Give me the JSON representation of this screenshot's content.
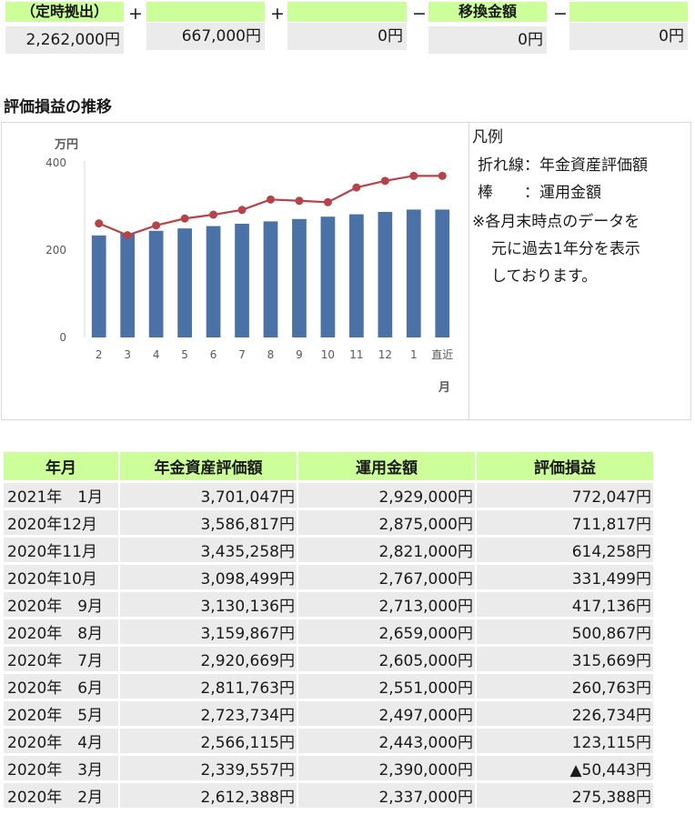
{
  "summary": {
    "boxes": [
      {
        "label": "（定時拠出）",
        "value": "2,262,000円"
      },
      {
        "label": "",
        "value": "667,000円"
      },
      {
        "label": "",
        "value": "0円"
      },
      {
        "label": "移換金額",
        "value": "0円"
      },
      {
        "label": "",
        "value": "0円"
      }
    ],
    "operators": [
      "+",
      "+",
      "−",
      "−"
    ]
  },
  "chart_section": {
    "title": "評価損益の推移",
    "legend": {
      "title": "凡例",
      "line1": "折れ線：年金資産評価額",
      "line2": "棒　　：運用金額",
      "note1": "※各月末時点のデータを",
      "note2": "元に過去1年分を表示",
      "note3": "しております。"
    }
  },
  "chart_data": {
    "type": "bar",
    "y_unit_label": "万円",
    "x_unit_label": "月",
    "categories": [
      "2",
      "3",
      "4",
      "5",
      "6",
      "7",
      "8",
      "9",
      "10",
      "11",
      "12",
      "1",
      "直近"
    ],
    "yticks": [
      0,
      200,
      400
    ],
    "ylim": [
      0,
      400
    ],
    "grid": false,
    "series": [
      {
        "kind": "bar",
        "color": "#4a72a6",
        "values": [
          233.7,
          239,
          244.3,
          249.7,
          255.1,
          260.5,
          265.9,
          271.3,
          276.7,
          282.1,
          287.5,
          292.9,
          292.9
        ]
      },
      {
        "kind": "line",
        "color": "#b5434a",
        "values": [
          261.2,
          234,
          256.6,
          272.4,
          281.2,
          292.1,
          316,
          313,
          309.8,
          343.5,
          358.7,
          370.1,
          370.1
        ]
      }
    ]
  },
  "history": {
    "headers": [
      "年月",
      "年金資産評価額",
      "運用金額",
      "評価損益"
    ],
    "rows": [
      [
        "2021年　1月",
        "3,701,047円",
        "2,929,000円",
        "772,047円"
      ],
      [
        "2020年12月",
        "3,586,817円",
        "2,875,000円",
        "711,817円"
      ],
      [
        "2020年11月",
        "3,435,258円",
        "2,821,000円",
        "614,258円"
      ],
      [
        "2020年10月",
        "3,098,499円",
        "2,767,000円",
        "331,499円"
      ],
      [
        "2020年　9月",
        "3,130,136円",
        "2,713,000円",
        "417,136円"
      ],
      [
        "2020年　8月",
        "3,159,867円",
        "2,659,000円",
        "500,867円"
      ],
      [
        "2020年　7月",
        "2,920,669円",
        "2,605,000円",
        "315,669円"
      ],
      [
        "2020年　6月",
        "2,811,763円",
        "2,551,000円",
        "260,763円"
      ],
      [
        "2020年　5月",
        "2,723,734円",
        "2,497,000円",
        "226,734円"
      ],
      [
        "2020年　4月",
        "2,566,115円",
        "2,443,000円",
        "123,115円"
      ],
      [
        "2020年　3月",
        "2,339,557円",
        "2,390,000円",
        "▲50,443円"
      ],
      [
        "2020年　2月",
        "2,612,388円",
        "2,337,000円",
        "275,388円"
      ]
    ]
  },
  "colors": {
    "header_green": "#ccff99",
    "cell_gray": "#ebebeb",
    "bar_blue": "#4a72a6",
    "line_red": "#b5434a"
  }
}
